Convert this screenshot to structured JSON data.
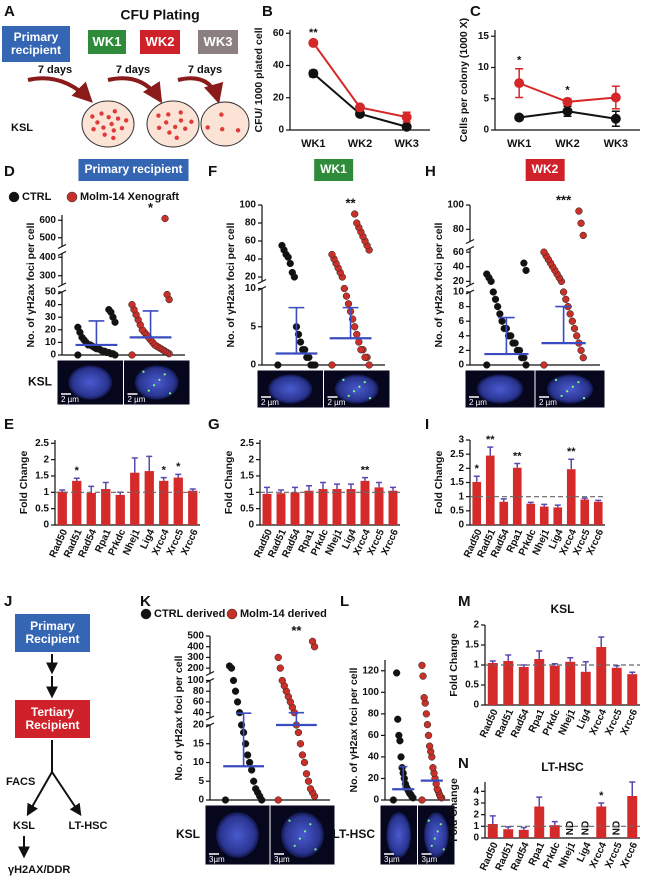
{
  "schematic_a": {
    "letter": "A",
    "title": "CFU Plating",
    "recipient": "Primary recipient",
    "weeks": [
      "WK1",
      "WK2",
      "WK3"
    ],
    "interval": [
      "7 days",
      "7 days",
      "7 days"
    ],
    "cells": "KSL"
  },
  "schematic_j": {
    "letter": "J",
    "primary": "Primary Recipient",
    "tertiary": "Tertiary Recipient",
    "sort": "FACS",
    "branches": [
      "KSL",
      "LT-HSC"
    ],
    "readout": "γH2AX/DDR"
  },
  "chart_data": [
    {
      "letter": "B",
      "type": "line",
      "ylabel": "CFU/ 1000 plated cell",
      "categories": [
        "WK1",
        "WK2",
        "WK3"
      ],
      "series": [
        {
          "color": "#111111",
          "values": [
            35,
            10,
            2
          ],
          "errors": [
            2,
            1.5,
            0.8
          ]
        },
        {
          "color": "#d62728",
          "values": [
            54,
            14,
            8
          ],
          "errors": [
            1,
            1.5,
            3
          ]
        }
      ],
      "ylim": [
        0,
        62
      ],
      "yticks": [
        0,
        20,
        40,
        60
      ],
      "significance": [
        "**",
        null,
        null
      ]
    },
    {
      "letter": "C",
      "type": "line",
      "ylabel": "Cells per colony (1000 X)",
      "categories": [
        "WK1",
        "WK2",
        "WK3"
      ],
      "series": [
        {
          "color": "#111111",
          "values": [
            2,
            3,
            1.8
          ],
          "errors": [
            0.4,
            0.8,
            1.2
          ]
        },
        {
          "color": "#d62728",
          "values": [
            7.5,
            4.5,
            5.2
          ],
          "errors": [
            2.3,
            0.5,
            1.8
          ]
        }
      ],
      "ylim": [
        0,
        16
      ],
      "yticks": [
        0,
        5,
        10,
        15
      ],
      "significance": [
        "*",
        "*",
        null
      ]
    },
    {
      "letter": "D",
      "type": "dotplot",
      "header": "Primary recipient",
      "header_color": "#3566b4",
      "ylabel": "No. of γH2ax foci per cell",
      "mean_color": "#3b4cc0",
      "groups": [
        {
          "name": "CTRL",
          "color": "#111111",
          "values": [
            0,
            0,
            1,
            1,
            2,
            2,
            3,
            3,
            4,
            5,
            5,
            6,
            7,
            8,
            8,
            10,
            12,
            14,
            18,
            22,
            26,
            30,
            34,
            36
          ],
          "mean": 8,
          "error": 19
        },
        {
          "name": "Molm-14 Xenograft",
          "color": "#c8302a",
          "values": [
            0,
            1,
            2,
            3,
            4,
            5,
            6,
            7,
            8,
            10,
            12,
            14,
            16,
            18,
            20,
            24,
            28,
            32,
            36,
            40,
            44,
            48,
            610
          ],
          "mean": 14,
          "error": 21
        }
      ],
      "ysegments": [
        {
          "ylim": [
            0,
            50
          ],
          "yticks": [
            0,
            10,
            20,
            30,
            40,
            50
          ]
        },
        {
          "ylim": [
            250,
            420
          ],
          "yticks": [
            300,
            400
          ]
        },
        {
          "ylim": [
            450,
            630
          ],
          "yticks": [
            500,
            600
          ]
        }
      ],
      "significance": [
        null,
        "*"
      ],
      "row_label": "KSL",
      "image_labels": [
        "2 µm",
        "2 µm"
      ]
    },
    {
      "letter": "F",
      "type": "dotplot",
      "header": "WK1",
      "header_color": "#2e8b3a",
      "ylabel": "No. of γH2ax foci per cell",
      "mean_color": "#3b4cc0",
      "groups": [
        {
          "color": "#111111",
          "values": [
            0,
            0,
            0,
            0,
            1,
            1,
            2,
            2,
            3,
            4,
            5,
            20,
            25,
            35,
            42,
            45,
            50,
            55
          ],
          "mean": 1.5,
          "error": 6
        },
        {
          "color": "#c8302a",
          "values": [
            0,
            0,
            1,
            1,
            2,
            2,
            3,
            4,
            5,
            6,
            7,
            8,
            9,
            10,
            20,
            25,
            30,
            35,
            40,
            45,
            50,
            55,
            60,
            65,
            70,
            75,
            80,
            90
          ],
          "mean": 3.5,
          "error": 4
        }
      ],
      "ysegments": [
        {
          "ylim": [
            0,
            10
          ],
          "yticks": [
            0,
            5,
            10
          ]
        },
        {
          "ylim": [
            15,
            100
          ],
          "yticks": [
            20,
            40,
            60,
            80,
            100
          ]
        }
      ],
      "significance": [
        null,
        "**"
      ],
      "image_labels": [
        "2 µm",
        "2 µm"
      ]
    },
    {
      "letter": "H",
      "type": "dotplot",
      "header": "WK2",
      "header_color": "#d0202a",
      "ylabel": "No. of γH2ax foci per cell",
      "mean_color": "#3b4cc0",
      "groups": [
        {
          "color": "#111111",
          "values": [
            0,
            0,
            1,
            1,
            2,
            2,
            3,
            3,
            4,
            4,
            5,
            5,
            6,
            7,
            8,
            9,
            10,
            20,
            25,
            30,
            35,
            45
          ],
          "mean": 1.5,
          "error": 5
        },
        {
          "color": "#c8302a",
          "values": [
            0,
            1,
            2,
            3,
            4,
            5,
            6,
            7,
            8,
            9,
            10,
            20,
            25,
            30,
            35,
            40,
            45,
            50,
            55,
            60,
            75,
            85,
            95
          ],
          "mean": 3,
          "error": 5
        }
      ],
      "ysegments": [
        {
          "ylim": [
            0,
            10
          ],
          "yticks": [
            0,
            2,
            4,
            6,
            8,
            10
          ]
        },
        {
          "ylim": [
            15,
            65
          ],
          "yticks": [
            20,
            40,
            60
          ]
        },
        {
          "ylim": [
            70,
            100
          ],
          "yticks": [
            80,
            100
          ]
        }
      ],
      "significance": [
        null,
        "***"
      ],
      "image_labels": [
        "2 µm",
        "2 µm"
      ]
    },
    {
      "letter": "E",
      "type": "bar",
      "ylabel": "Fold Change",
      "categories": [
        "Rad50",
        "Rad51",
        "Rad54",
        "Rpa1",
        "Prkdc",
        "Nhej1",
        "Lig4",
        "Xrcc4",
        "Xrcc5",
        "Xrcc6"
      ],
      "values": [
        1.02,
        1.35,
        0.98,
        1.1,
        0.92,
        1.6,
        1.65,
        1.35,
        1.45,
        1.05
      ],
      "errors": [
        0.05,
        0.08,
        0.2,
        0.2,
        0.08,
        0.45,
        0.45,
        0.1,
        0.1,
        0.05
      ],
      "color": "#d42a2a",
      "error_color": "#5a4ab0",
      "ylim": [
        0,
        2.6
      ],
      "yticks": [
        0,
        0.5,
        1,
        1.5,
        2,
        2.5
      ],
      "reference_line": 1,
      "significance": [
        null,
        "*",
        null,
        null,
        null,
        null,
        null,
        "*",
        "*",
        null
      ]
    },
    {
      "letter": "G",
      "type": "bar",
      "ylabel": "Fold Change",
      "categories": [
        "Rad50",
        "Rad51",
        "Rad54",
        "Rpa1",
        "Prkdc",
        "Nhej1",
        "Lig4",
        "Xrcc4",
        "Xrcc5",
        "Xrcc6"
      ],
      "values": [
        0.95,
        0.97,
        1.0,
        1.05,
        1.1,
        1.1,
        1.1,
        1.35,
        1.15,
        1.05
      ],
      "errors": [
        0.2,
        0.1,
        0.15,
        0.15,
        0.2,
        0.15,
        0.15,
        0.1,
        0.15,
        0.1
      ],
      "color": "#d42a2a",
      "error_color": "#5a4ab0",
      "ylim": [
        0,
        2.6
      ],
      "yticks": [
        0,
        0.5,
        1,
        1.5,
        2,
        2.5
      ],
      "reference_line": 1,
      "significance": [
        null,
        null,
        null,
        null,
        null,
        null,
        null,
        "**",
        null,
        null
      ]
    },
    {
      "letter": "I",
      "type": "bar",
      "ylabel": "Fold Change",
      "categories": [
        "Rad50",
        "Rad51",
        "Rad54",
        "Rpa1",
        "Prkdc",
        "Nhej1",
        "Lig4",
        "Xrcc4",
        "Xrcc5",
        "Xrcc6"
      ],
      "values": [
        1.52,
        2.45,
        0.82,
        2.02,
        0.75,
        0.65,
        0.62,
        1.97,
        0.9,
        0.82
      ],
      "errors": [
        0.2,
        0.3,
        0.1,
        0.15,
        0.05,
        0.08,
        0.08,
        0.35,
        0.05,
        0.05
      ],
      "color": "#d42a2a",
      "error_color": "#5a4ab0",
      "ylim": [
        0,
        3
      ],
      "yticks": [
        0,
        0.5,
        1,
        1.5,
        2,
        2.5,
        3
      ],
      "reference_line": 1,
      "significance": [
        "*",
        "**",
        null,
        "**",
        null,
        null,
        null,
        "**",
        null,
        null
      ]
    },
    {
      "letter": "K",
      "type": "dotplot",
      "ylabel": "No. of γH2ax foci per cell",
      "mean_color": "#3b4cc0",
      "groups": [
        {
          "name": "CTRL derived",
          "color": "#111111",
          "values": [
            0,
            0,
            1,
            2,
            3,
            5,
            8,
            10,
            12,
            15,
            18,
            20,
            40,
            60,
            80,
            100,
            200,
            220
          ],
          "mean": 9,
          "error": 30
        },
        {
          "name": "Molm-14 derived",
          "color": "#c8302a",
          "values": [
            0,
            1,
            2,
            3,
            5,
            7,
            10,
            12,
            15,
            18,
            20,
            40,
            50,
            60,
            70,
            80,
            90,
            100,
            200,
            300,
            400,
            450
          ],
          "mean": 20,
          "error": 20
        }
      ],
      "ysegments": [
        {
          "ylim": [
            0,
            20
          ],
          "yticks": [
            0,
            5,
            10,
            15,
            20
          ]
        },
        {
          "ylim": [
            30,
            100
          ],
          "yticks": [
            40,
            60,
            80,
            100
          ]
        },
        {
          "ylim": [
            150,
            500
          ],
          "yticks": [
            200,
            300,
            400,
            500
          ]
        }
      ],
      "significance": [
        null,
        "**"
      ],
      "row_label": "KSL",
      "image_labels": [
        "3µm",
        "3µm"
      ]
    },
    {
      "letter": "L",
      "type": "dotplot",
      "ylabel": "No. of γH2ax foci per cell",
      "mean_color": "#3b4cc0",
      "groups": [
        {
          "color": "#111111",
          "values": [
            0,
            2,
            3,
            5,
            6,
            8,
            10,
            12,
            15,
            20,
            25,
            30,
            40,
            55,
            60,
            75,
            118
          ],
          "mean": 10,
          "error": 21
        },
        {
          "color": "#c8302a",
          "values": [
            0,
            2,
            3,
            5,
            8,
            10,
            15,
            20,
            25,
            30,
            40,
            45,
            50,
            60,
            70,
            80,
            90,
            95,
            115,
            125
          ],
          "mean": 18
        }
      ],
      "ylim": [
        0,
        130
      ],
      "yticks": [
        0,
        20,
        40,
        60,
        80,
        100,
        120
      ],
      "significance": [
        null,
        null
      ],
      "row_label": "LT-HSC",
      "image_labels": [
        "3µm",
        "3µm"
      ]
    },
    {
      "letter": "M",
      "type": "bar",
      "title": "KSL",
      "ylabel": "Fold Change",
      "categories": [
        "Rad50",
        "Rad51",
        "Rad54",
        "Rpa1",
        "Prkdc",
        "Nhej1",
        "Lig4",
        "Xrcc4",
        "Xrcc5",
        "Xrcc6"
      ],
      "values": [
        1.05,
        1.1,
        0.95,
        1.15,
        0.98,
        1.08,
        0.83,
        1.45,
        0.93,
        0.77
      ],
      "errors": [
        0.05,
        0.15,
        0.05,
        0.2,
        0.05,
        0.1,
        0.25,
        0.25,
        0.05,
        0.05
      ],
      "color": "#d42a2a",
      "error_color": "#5a4ab0",
      "ylim": [
        0,
        2
      ],
      "yticks": [
        0,
        0.5,
        1,
        1.5,
        2
      ],
      "reference_line": 1,
      "significance": [
        null,
        null,
        null,
        null,
        null,
        null,
        null,
        null,
        null,
        null
      ]
    },
    {
      "letter": "N",
      "type": "bar",
      "title": "LT-HSC",
      "ylabel": "Fold Change",
      "categories": [
        "Rad50",
        "Rad51",
        "Rad54",
        "Rpa1",
        "Prkdc",
        "Nhej1",
        "Lig4",
        "Xrcc4",
        "Xrcc5",
        "Xrcc6"
      ],
      "values": [
        1.2,
        0.75,
        0.7,
        2.7,
        1.1,
        null,
        null,
        2.7,
        null,
        3.6
      ],
      "errors": [
        0.7,
        0.2,
        0.2,
        0.8,
        0.3,
        null,
        null,
        0.3,
        null,
        1.2
      ],
      "value_labels": [
        null,
        null,
        null,
        null,
        null,
        "ND",
        "ND",
        null,
        "ND",
        null
      ],
      "color": "#d42a2a",
      "error_color": "#5a4ab0",
      "ylim": [
        0,
        4.8
      ],
      "yticks": [
        0,
        1,
        2,
        3,
        4
      ],
      "reference_line": 1,
      "significance": [
        null,
        null,
        null,
        null,
        null,
        null,
        null,
        "*",
        null,
        null
      ]
    }
  ]
}
